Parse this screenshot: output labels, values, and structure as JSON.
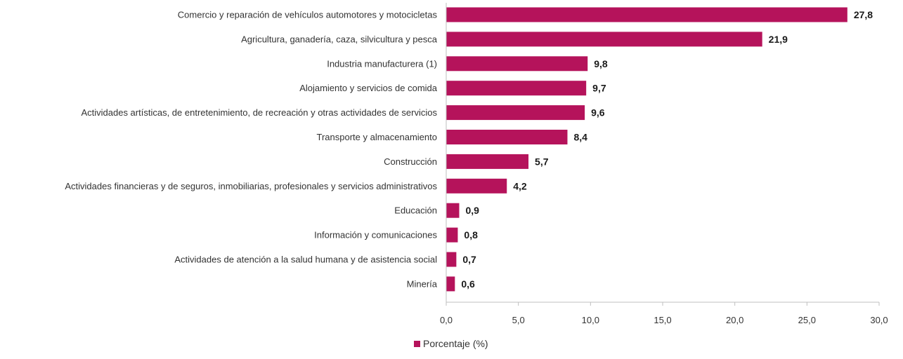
{
  "chart_data": {
    "type": "bar",
    "orientation": "horizontal",
    "categories": [
      "Comercio y reparación de vehículos automotores y motocicletas",
      "Agricultura, ganadería, caza, silvicultura y pesca",
      "Industria manufacturera (1)",
      "Alojamiento y servicios de comida",
      "Actividades artísticas, de entretenimiento, de recreación y otras actividades de servicios",
      "Transporte y almacenamiento",
      "Construcción",
      "Actividades financieras y de seguros, inmobiliarias, profesionales y servicios administrativos",
      "Educación",
      "Información y comunicaciones",
      "Actividades de atención a la salud humana y de asistencia social",
      "Minería"
    ],
    "series": [
      {
        "name": "Porcentaje (%)",
        "values": [
          27.8,
          21.9,
          9.8,
          9.7,
          9.6,
          8.4,
          5.7,
          4.2,
          0.9,
          0.8,
          0.7,
          0.6
        ],
        "value_labels": [
          "27,8",
          "21,9",
          "9,8",
          "9,7",
          "9,6",
          "8,4",
          "5,7",
          "4,2",
          "0,9",
          "0,8",
          "0,7",
          "0,6"
        ]
      }
    ],
    "xlim": [
      0,
      30
    ],
    "x_ticks": [
      0,
      5,
      10,
      15,
      20,
      25,
      30
    ],
    "x_tick_labels": [
      "0,0",
      "5,0",
      "10,0",
      "15,0",
      "20,0",
      "25,0",
      "30,0"
    ],
    "xlabel": "",
    "ylabel": "",
    "title": "",
    "grid": false,
    "legend": {
      "position": "bottom-center",
      "entries": [
        "Porcentaje (%)"
      ]
    },
    "colors": {
      "bar": "#b5135b",
      "axis": "#bfbfbf"
    }
  }
}
